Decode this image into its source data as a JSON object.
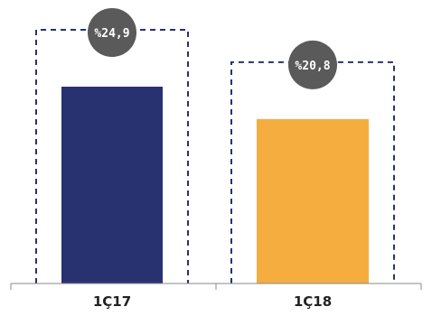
{
  "chart_data": {
    "type": "bar",
    "categories": [
      "1Ç17",
      "1Ç18"
    ],
    "values": [
      24.9,
      20.8
    ],
    "data_labels": [
      "%24,9",
      "%20,8"
    ],
    "colors": [
      "#283270",
      "#f5ad40"
    ],
    "badge_color": "#5a5a5a",
    "dashed_box_color": "#283270",
    "axis_color": "#888888",
    "ylim": [
      0,
      30
    ],
    "grid": false,
    "legend": "none"
  }
}
